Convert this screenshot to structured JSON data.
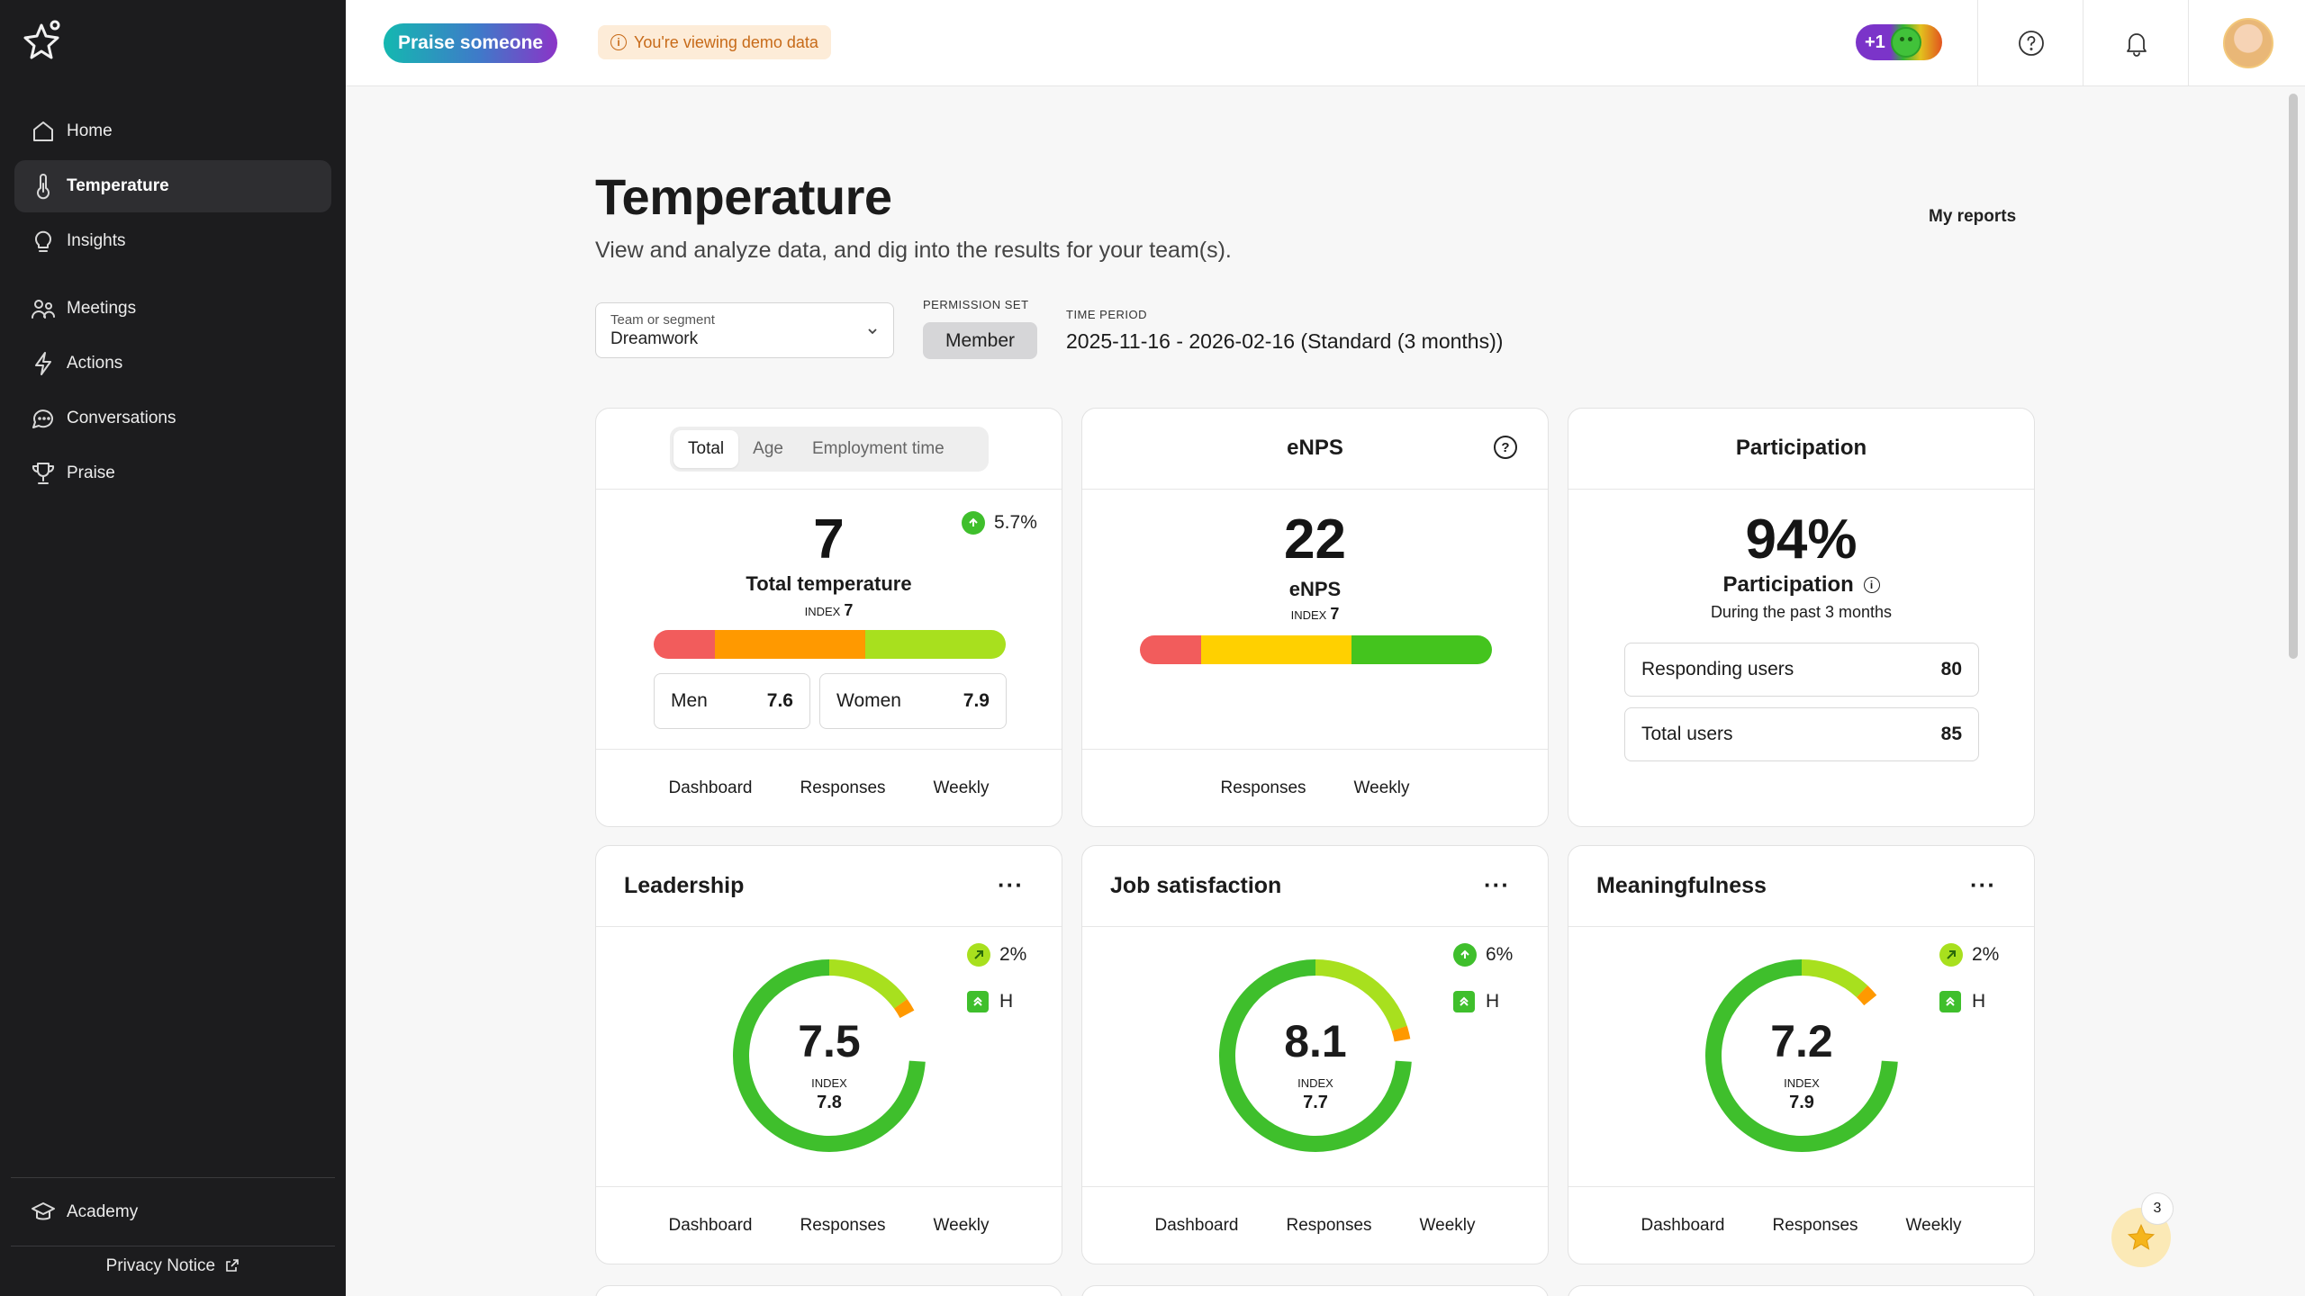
{
  "sidebar": {
    "items": [
      {
        "label": "Home",
        "icon": "home-icon"
      },
      {
        "label": "Temperature",
        "icon": "thermometer-icon",
        "active": true
      },
      {
        "label": "Insights",
        "icon": "lightbulb-icon"
      },
      {
        "label": "Meetings",
        "icon": "people-icon"
      },
      {
        "label": "Actions",
        "icon": "lightning-icon"
      },
      {
        "label": "Conversations",
        "icon": "chat-icon"
      },
      {
        "label": "Praise",
        "icon": "trophy-icon"
      }
    ],
    "academy": "Academy",
    "privacy": "Privacy Notice"
  },
  "topbar": {
    "praise_button": "Praise someone",
    "demo_notice": "You're viewing demo data",
    "mood_count": "+1"
  },
  "header": {
    "title": "Temperature",
    "subtitle": "View and analyze data, and dig into the results for your team(s).",
    "my_reports": "My reports",
    "team_label": "Team or segment",
    "team_value": "Dreamwork",
    "permission_label": "PERMISSION SET",
    "permission_value": "Member",
    "time_label": "TIME PERIOD",
    "time_value": "2025-11-16 - 2026-02-16 (Standard (3 months))"
  },
  "total_card": {
    "tabs": [
      "Total",
      "Age",
      "Employment time"
    ],
    "trend": "5.7%",
    "value": "7",
    "label": "Total temperature",
    "index_label": "INDEX",
    "index_value": "7",
    "split": [
      {
        "label": "Men",
        "value": "7.6"
      },
      {
        "label": "Women",
        "value": "7.9"
      }
    ],
    "links": [
      "Dashboard",
      "Responses",
      "Weekly"
    ]
  },
  "enps_card": {
    "title": "eNPS",
    "value": "22",
    "label": "eNPS",
    "index_label": "INDEX",
    "index_value": "7",
    "links": [
      "Responses",
      "Weekly"
    ]
  },
  "participation_card": {
    "title": "Participation",
    "value": "94%",
    "label": "Participation",
    "sub": "During the past 3 months",
    "rows": [
      {
        "label": "Responding users",
        "value": "80"
      },
      {
        "label": "Total users",
        "value": "85"
      }
    ]
  },
  "factor_cards": [
    {
      "title": "Leadership",
      "value": "7.5",
      "index_label": "INDEX",
      "index": "7.8",
      "trend": "2%",
      "trend_dir": "up-right",
      "level": "H",
      "links": [
        "Dashboard",
        "Responses",
        "Weekly"
      ]
    },
    {
      "title": "Job satisfaction",
      "value": "8.1",
      "index_label": "INDEX",
      "index": "7.7",
      "trend": "6%",
      "trend_dir": "up",
      "level": "H",
      "links": [
        "Dashboard",
        "Responses",
        "Weekly"
      ]
    },
    {
      "title": "Meaningfulness",
      "value": "7.2",
      "index_label": "INDEX",
      "index": "7.9",
      "trend": "2%",
      "trend_dir": "up-right",
      "level": "H",
      "links": [
        "Dashboard",
        "Responses",
        "Weekly"
      ]
    }
  ],
  "fab_badge": "3",
  "colors": {
    "green": "#3fbf2c",
    "lime": "#a8e01e",
    "orange": "#ff9900",
    "red": "#f25c5c",
    "yellow": "#ffd000",
    "sidebar": "#1c1c1e"
  }
}
